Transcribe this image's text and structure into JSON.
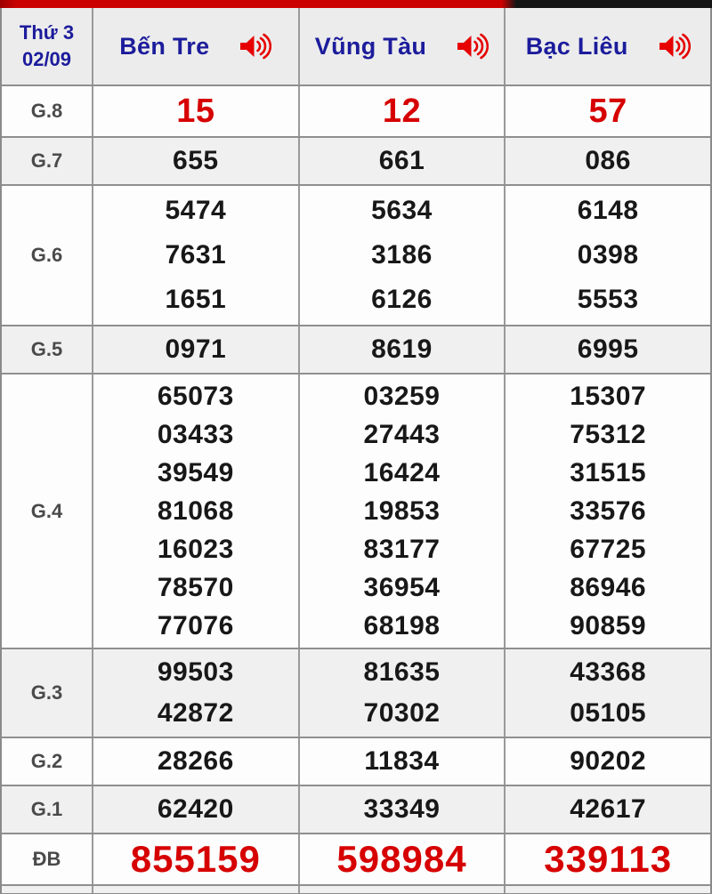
{
  "header": {
    "date": {
      "line1": "Thứ 3",
      "line2": "02/09"
    },
    "columns": [
      {
        "name": "Bến Tre",
        "icon": "speaker-icon"
      },
      {
        "name": "Vũng Tàu",
        "icon": "speaker-icon"
      },
      {
        "name": "Bạc Liêu",
        "icon": "speaker-icon"
      }
    ]
  },
  "results": [
    {
      "label": "G.8",
      "key": "g8",
      "highlight": true,
      "values": [
        [
          "15"
        ],
        [
          "12"
        ],
        [
          "57"
        ]
      ]
    },
    {
      "label": "G.7",
      "key": "g7",
      "highlight": false,
      "values": [
        [
          "655"
        ],
        [
          "661"
        ],
        [
          "086"
        ]
      ]
    },
    {
      "label": "G.6",
      "key": "g6",
      "highlight": false,
      "values": [
        [
          "5474",
          "7631",
          "1651"
        ],
        [
          "5634",
          "3186",
          "6126"
        ],
        [
          "6148",
          "0398",
          "5553"
        ]
      ]
    },
    {
      "label": "G.5",
      "key": "g5",
      "highlight": false,
      "values": [
        [
          "0971"
        ],
        [
          "8619"
        ],
        [
          "6995"
        ]
      ]
    },
    {
      "label": "G.4",
      "key": "g4",
      "highlight": false,
      "values": [
        [
          "65073",
          "03433",
          "39549",
          "81068",
          "16023",
          "78570",
          "77076"
        ],
        [
          "03259",
          "27443",
          "16424",
          "19853",
          "83177",
          "36954",
          "68198"
        ],
        [
          "15307",
          "75312",
          "31515",
          "33576",
          "67725",
          "86946",
          "90859"
        ]
      ]
    },
    {
      "label": "G.3",
      "key": "g3",
      "highlight": false,
      "values": [
        [
          "99503",
          "42872"
        ],
        [
          "81635",
          "70302"
        ],
        [
          "43368",
          "05105"
        ]
      ]
    },
    {
      "label": "G.2",
      "key": "g2",
      "highlight": false,
      "values": [
        [
          "28266"
        ],
        [
          "11834"
        ],
        [
          "90202"
        ]
      ]
    },
    {
      "label": "G.1",
      "key": "g1",
      "highlight": false,
      "values": [
        [
          "62420"
        ],
        [
          "33349"
        ],
        [
          "42617"
        ]
      ]
    },
    {
      "label": "ĐB",
      "key": "db",
      "highlight": true,
      "values": [
        [
          "855159"
        ],
        [
          "598984"
        ],
        [
          "339113"
        ]
      ]
    }
  ],
  "colors": {
    "accent_red": "#d60000",
    "navy_text": "#1c1c9c",
    "top_bar_red": "#cb0101",
    "top_bar_black": "#141414",
    "shade_row": "#f0f0f0",
    "label_gray": "#4a4a4a"
  }
}
